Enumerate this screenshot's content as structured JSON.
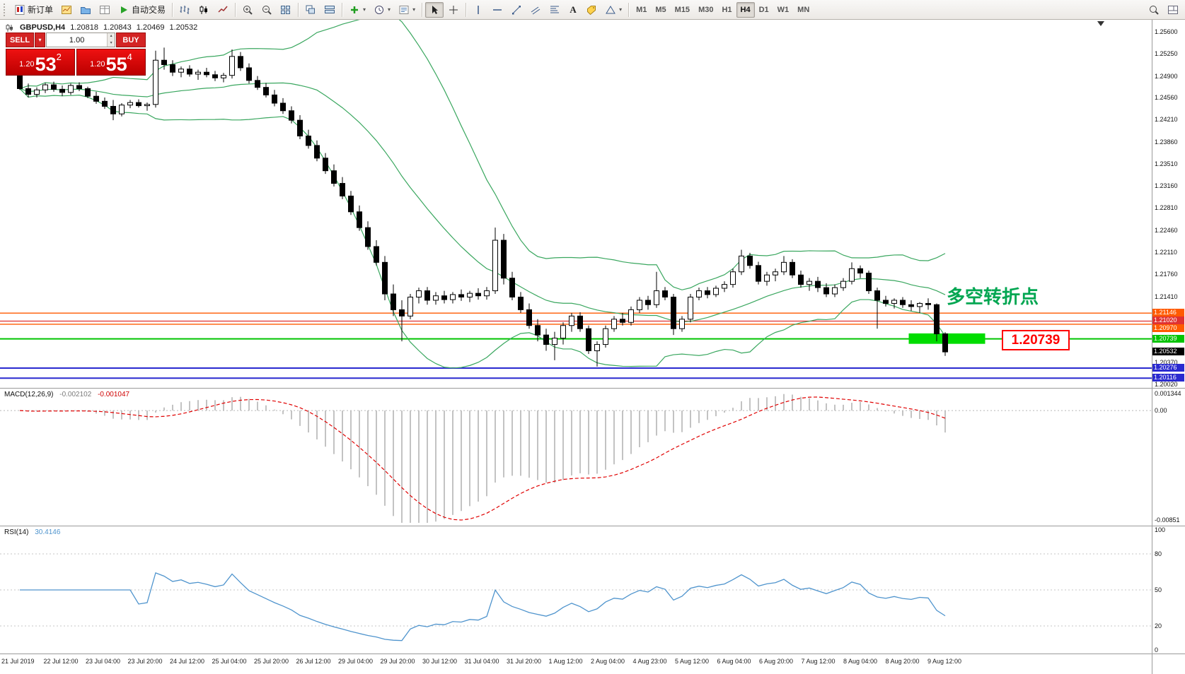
{
  "toolbar": {
    "new_order_label": "新订单",
    "auto_trading_label": "自动交易",
    "text_tool_glyph": "A",
    "timeframes": [
      "M1",
      "M5",
      "M15",
      "M30",
      "H1",
      "H4",
      "D1",
      "W1",
      "MN"
    ],
    "active_timeframe": "H4"
  },
  "chart_header": {
    "symbol": "GBPUSD,H4",
    "open": "1.20818",
    "high": "1.20843",
    "low": "1.20469",
    "close": "1.20532"
  },
  "trade_panel": {
    "sell_label": "SELL",
    "buy_label": "BUY",
    "volume": "1.00",
    "sell_price_prefix": "1.20",
    "sell_price_big": "53",
    "sell_price_sup": "2",
    "buy_price_prefix": "1.20",
    "buy_price_big": "55",
    "buy_price_sup": "4"
  },
  "annotations": {
    "turning_point_label": "多空转折点",
    "price_callout": "1.20739"
  },
  "price_axis": {
    "ticks": [
      {
        "label": "1.25600",
        "price": 1.256
      },
      {
        "label": "1.25250",
        "price": 1.2525
      },
      {
        "label": "1.24900",
        "price": 1.249
      },
      {
        "label": "1.24560",
        "price": 1.2456
      },
      {
        "label": "1.24210",
        "price": 1.2421
      },
      {
        "label": "1.23860",
        "price": 1.2386
      },
      {
        "label": "1.23510",
        "price": 1.2351
      },
      {
        "label": "1.23160",
        "price": 1.2316
      },
      {
        "label": "1.22810",
        "price": 1.2281
      },
      {
        "label": "1.22460",
        "price": 1.2246
      },
      {
        "label": "1.22110",
        "price": 1.2211
      },
      {
        "label": "1.21760",
        "price": 1.2176
      },
      {
        "label": "1.21410",
        "price": 1.2141
      },
      {
        "label": "1.20370",
        "price": 1.2037
      },
      {
        "label": "1.20020",
        "price": 1.2002
      }
    ],
    "line_labels": [
      {
        "label": "1.21146",
        "price": 1.21146,
        "bg": "#ff5a00",
        "fg": "#ffffff"
      },
      {
        "label": "1.21020",
        "price": 1.2102,
        "bg": "#e03232",
        "fg": "#ffffff"
      },
      {
        "label": "1.20970",
        "price": 1.2097,
        "bg": "#ff5a00",
        "fg": "#ffffff"
      },
      {
        "label": "1.20739",
        "price": 1.20739,
        "bg": "#00c400",
        "fg": "#ffffff"
      },
      {
        "label": "1.20532",
        "price": 1.20532,
        "bg": "#000000",
        "fg": "#ffffff"
      },
      {
        "label": "1.20276",
        "price": 1.20276,
        "bg": "#2a2ad0",
        "fg": "#ffffff"
      },
      {
        "label": "1.20116",
        "price": 1.20116,
        "bg": "#2a2ad0",
        "fg": "#ffffff"
      }
    ]
  },
  "indicators": {
    "macd": {
      "name": "MACD(12,26,9)",
      "main_value": "-0.002102",
      "signal_value": "-0.001047",
      "scale": {
        "top": "0.001344",
        "zero": "0.00",
        "bottom": "-0.00851"
      }
    },
    "rsi": {
      "name": "RSI(14)",
      "value": "30.4146",
      "scale": [
        {
          "label": "100",
          "v": 100
        },
        {
          "label": "80",
          "v": 80
        },
        {
          "label": "50",
          "v": 50
        },
        {
          "label": "20",
          "v": 20
        },
        {
          "label": "0",
          "v": 0
        }
      ],
      "levels": [
        80,
        50,
        20
      ]
    }
  },
  "time_axis": [
    "21 Jul 2019",
    "22 Jul 12:00",
    "23 Jul 04:00",
    "23 Jul 20:00",
    "24 Jul 12:00",
    "25 Jul 04:00",
    "25 Jul 20:00",
    "26 Jul 12:00",
    "29 Jul 04:00",
    "29 Jul 20:00",
    "30 Jul 12:00",
    "31 Jul 04:00",
    "31 Jul 20:00",
    "1 Aug 12:00",
    "2 Aug 04:00",
    "4 Aug 23:00",
    "5 Aug 12:00",
    "6 Aug 04:00",
    "6 Aug 20:00",
    "7 Aug 12:00",
    "8 Aug 04:00",
    "8 Aug 20:00",
    "9 Aug 12:00"
  ],
  "chart_data": {
    "type": "candlestick",
    "symbol": "GBPUSD",
    "timeframe": "H4",
    "indicators_on_chart": [
      "Bollinger Bands (20,2)"
    ],
    "style": {
      "bull": "#ffffff",
      "bear": "#000000",
      "wick": "#000000",
      "band": "#3aa75f",
      "macd_hist": "#b4b4b4",
      "macd_signal": "#e00000",
      "rsi_line": "#4f94cd"
    },
    "price_lines": [
      {
        "price": 1.21146,
        "color": "#ff5a00",
        "width": 1.4
      },
      {
        "price": 1.2102,
        "color": "#e03232",
        "width": 1.2
      },
      {
        "price": 1.2097,
        "color": "#ff5a00",
        "width": 1.4
      },
      {
        "price": 1.20739,
        "color": "#00c400",
        "width": 2
      },
      {
        "price": 1.20276,
        "color": "#2a2ad0",
        "width": 2
      },
      {
        "price": 1.20116,
        "color": "#2a2ad0",
        "width": 2
      }
    ],
    "highlight_zone": {
      "from_bar": 105,
      "to_bar": 114,
      "price_top": 1.20825,
      "price_bottom": 1.2066,
      "color": "#00dd00"
    },
    "candles": [
      [
        1.2496,
        1.25,
        1.2468,
        1.247
      ],
      [
        1.247,
        1.2478,
        1.2456,
        1.2461
      ],
      [
        1.2461,
        1.2472,
        1.2456,
        1.2468
      ],
      [
        1.2468,
        1.2479,
        1.2463,
        1.2476
      ],
      [
        1.2476,
        1.2481,
        1.2465,
        1.2469
      ],
      [
        1.2469,
        1.2475,
        1.2458,
        1.2464
      ],
      [
        1.2464,
        1.2478,
        1.246,
        1.2475
      ],
      [
        1.2475,
        1.248,
        1.2466,
        1.247
      ],
      [
        1.247,
        1.2473,
        1.2455,
        1.2458
      ],
      [
        1.2458,
        1.2465,
        1.2446,
        1.245
      ],
      [
        1.245,
        1.2456,
        1.2438,
        1.2442
      ],
      [
        1.2442,
        1.2452,
        1.242,
        1.243
      ],
      [
        1.243,
        1.2447,
        1.2426,
        1.2444
      ],
      [
        1.2444,
        1.2452,
        1.2439,
        1.2448
      ],
      [
        1.2448,
        1.2453,
        1.244,
        1.2443
      ],
      [
        1.2443,
        1.2448,
        1.2435,
        1.2445
      ],
      [
        1.2445,
        1.253,
        1.244,
        1.2515
      ],
      [
        1.2515,
        1.2535,
        1.25,
        1.2508
      ],
      [
        1.2508,
        1.2515,
        1.249,
        1.2496
      ],
      [
        1.2496,
        1.2505,
        1.2488,
        1.2501
      ],
      [
        1.2501,
        1.2507,
        1.2489,
        1.2493
      ],
      [
        1.2493,
        1.25,
        1.2484,
        1.2496
      ],
      [
        1.2496,
        1.2503,
        1.2488,
        1.2492
      ],
      [
        1.2492,
        1.2498,
        1.2482,
        1.2487
      ],
      [
        1.2487,
        1.2495,
        1.248,
        1.2491
      ],
      [
        1.2491,
        1.2532,
        1.2486,
        1.2521
      ],
      [
        1.2521,
        1.2528,
        1.2498,
        1.2503
      ],
      [
        1.2503,
        1.251,
        1.2478,
        1.2483
      ],
      [
        1.2483,
        1.249,
        1.2468,
        1.2472
      ],
      [
        1.2472,
        1.2479,
        1.2456,
        1.246
      ],
      [
        1.246,
        1.2468,
        1.2442,
        1.2447
      ],
      [
        1.2447,
        1.2455,
        1.243,
        1.2435
      ],
      [
        1.2435,
        1.2442,
        1.2415,
        1.242
      ],
      [
        1.242,
        1.2428,
        1.239,
        1.2395
      ],
      [
        1.2395,
        1.2405,
        1.2375,
        1.238
      ],
      [
        1.238,
        1.2388,
        1.2355,
        1.236
      ],
      [
        1.236,
        1.2368,
        1.2335,
        1.234
      ],
      [
        1.234,
        1.235,
        1.2315,
        1.232
      ],
      [
        1.232,
        1.233,
        1.2295,
        1.23
      ],
      [
        1.23,
        1.2308,
        1.227,
        1.2275
      ],
      [
        1.2275,
        1.2285,
        1.2245,
        1.225
      ],
      [
        1.225,
        1.226,
        1.2215,
        1.222
      ],
      [
        1.222,
        1.223,
        1.219,
        1.2195
      ],
      [
        1.2195,
        1.2205,
        1.2135,
        1.2145
      ],
      [
        1.2145,
        1.216,
        1.211,
        1.212
      ],
      [
        1.212,
        1.2135,
        1.207,
        1.211
      ],
      [
        1.211,
        1.2145,
        1.2105,
        1.214
      ],
      [
        1.214,
        1.2155,
        1.213,
        1.215
      ],
      [
        1.215,
        1.2156,
        1.2128,
        1.2135
      ],
      [
        1.2135,
        1.2148,
        1.2128,
        1.2142
      ],
      [
        1.2142,
        1.215,
        1.213,
        1.2136
      ],
      [
        1.2136,
        1.2148,
        1.213,
        1.2144
      ],
      [
        1.2144,
        1.2152,
        1.2134,
        1.214
      ],
      [
        1.214,
        1.215,
        1.2132,
        1.2146
      ],
      [
        1.2146,
        1.2154,
        1.2136,
        1.2142
      ],
      [
        1.2142,
        1.2156,
        1.2136,
        1.215
      ],
      [
        1.215,
        1.225,
        1.2145,
        1.223
      ],
      [
        1.223,
        1.224,
        1.216,
        1.217
      ],
      [
        1.217,
        1.218,
        1.2135,
        1.214
      ],
      [
        1.214,
        1.2148,
        1.2115,
        1.212
      ],
      [
        1.212,
        1.213,
        1.209,
        1.2095
      ],
      [
        1.2095,
        1.2105,
        1.207,
        1.208
      ],
      [
        1.208,
        1.209,
        1.2055,
        1.2065
      ],
      [
        1.2065,
        1.2085,
        1.204,
        1.2075
      ],
      [
        1.2075,
        1.21,
        1.2065,
        1.2095
      ],
      [
        1.2095,
        1.2115,
        1.2085,
        1.211
      ],
      [
        1.211,
        1.2116,
        1.2085,
        1.209
      ],
      [
        1.209,
        1.2095,
        1.205,
        1.2055
      ],
      [
        1.2055,
        1.207,
        1.203,
        1.2065
      ],
      [
        1.2065,
        1.2095,
        1.206,
        1.209
      ],
      [
        1.209,
        1.211,
        1.2085,
        1.2105
      ],
      [
        1.2105,
        1.2115,
        1.2095,
        1.21
      ],
      [
        1.21,
        1.2125,
        1.2095,
        1.212
      ],
      [
        1.212,
        1.214,
        1.2115,
        1.2135
      ],
      [
        1.2135,
        1.2142,
        1.212,
        1.2128
      ],
      [
        1.2128,
        1.218,
        1.2123,
        1.215
      ],
      [
        1.215,
        1.2156,
        1.2135,
        1.214
      ],
      [
        1.214,
        1.2145,
        1.208,
        1.209
      ],
      [
        1.209,
        1.211,
        1.2085,
        1.2105
      ],
      [
        1.2105,
        1.2145,
        1.21,
        1.214
      ],
      [
        1.214,
        1.2155,
        1.2135,
        1.215
      ],
      [
        1.215,
        1.2156,
        1.2138,
        1.2144
      ],
      [
        1.2144,
        1.2158,
        1.214,
        1.2154
      ],
      [
        1.2154,
        1.2165,
        1.2148,
        1.216
      ],
      [
        1.216,
        1.2185,
        1.2155,
        1.218
      ],
      [
        1.218,
        1.2215,
        1.2175,
        1.2205
      ],
      [
        1.2205,
        1.221,
        1.2185,
        1.219
      ],
      [
        1.219,
        1.2196,
        1.216,
        1.2165
      ],
      [
        1.2165,
        1.218,
        1.2158,
        1.2175
      ],
      [
        1.2175,
        1.2185,
        1.2165,
        1.218
      ],
      [
        1.218,
        1.2205,
        1.2175,
        1.2195
      ],
      [
        1.2195,
        1.22,
        1.217,
        1.2175
      ],
      [
        1.2175,
        1.2182,
        1.2155,
        1.216
      ],
      [
        1.216,
        1.217,
        1.215,
        1.2165
      ],
      [
        1.2165,
        1.2172,
        1.2148,
        1.2155
      ],
      [
        1.2155,
        1.2162,
        1.214,
        1.2145
      ],
      [
        1.2145,
        1.216,
        1.214,
        1.2155
      ],
      [
        1.2155,
        1.217,
        1.215,
        1.2165
      ],
      [
        1.2165,
        1.2195,
        1.216,
        1.2185
      ],
      [
        1.2185,
        1.219,
        1.217,
        1.2178
      ],
      [
        1.2178,
        1.2182,
        1.2145,
        1.215
      ],
      [
        1.215,
        1.2155,
        1.209,
        1.2135
      ],
      [
        1.2135,
        1.2142,
        1.2125,
        1.213
      ],
      [
        1.213,
        1.2138,
        1.2122,
        1.2135
      ],
      [
        1.2135,
        1.214,
        1.2123,
        1.2128
      ],
      [
        1.2128,
        1.2135,
        1.2118,
        1.2125
      ],
      [
        1.2125,
        1.2132,
        1.2115,
        1.213
      ],
      [
        1.213,
        1.2138,
        1.212,
        1.2128
      ],
      [
        1.2128,
        1.213,
        1.207,
        1.20818
      ],
      [
        1.20818,
        1.20843,
        1.20469,
        1.20532
      ]
    ]
  }
}
